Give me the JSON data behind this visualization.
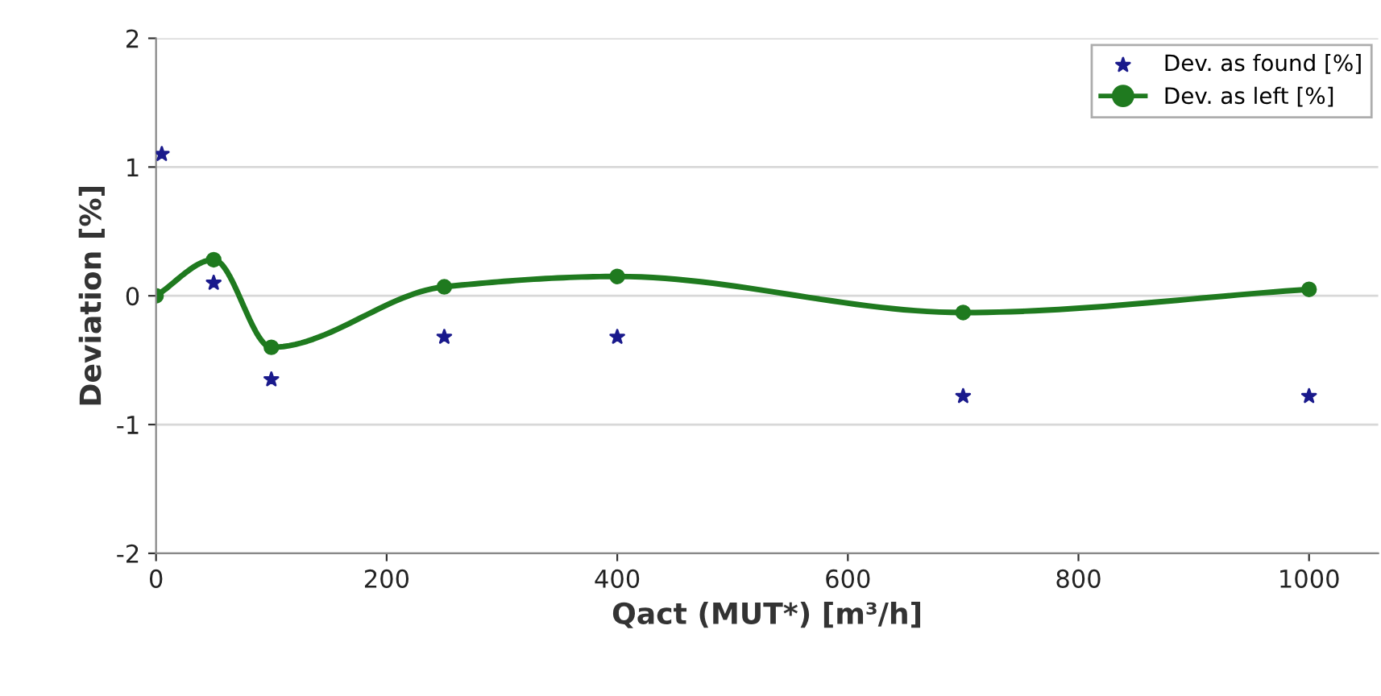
{
  "chart_data": {
    "type": "scatter",
    "xlabel": "Qact (MUT*) [m³/h]",
    "ylabel": "Deviation [%]",
    "xlim": [
      0,
      1060
    ],
    "xticks": [
      0,
      200,
      400,
      600,
      800,
      1000
    ],
    "ylim": [
      -2,
      2
    ],
    "yticks": [
      -2,
      -1,
      0,
      1,
      2
    ],
    "grid": "y",
    "legend": "top right",
    "series": [
      {
        "name": "Dev. as found [%]",
        "marker": "star",
        "color": "#1a1a8c",
        "x": [
          5,
          50,
          100,
          250,
          400,
          700,
          1000
        ],
        "values": [
          1.1,
          0.1,
          -0.65,
          -0.32,
          -0.32,
          -0.78,
          -0.78
        ]
      },
      {
        "name": "Dev. as left [%]",
        "type": "line",
        "marker": "circle",
        "color": "#1f7a1f",
        "x": [
          0,
          50,
          100,
          250,
          400,
          700,
          1000
        ],
        "values": [
          0,
          0.28,
          -0.4,
          0.07,
          0.15,
          -0.13,
          0.05
        ]
      }
    ]
  }
}
